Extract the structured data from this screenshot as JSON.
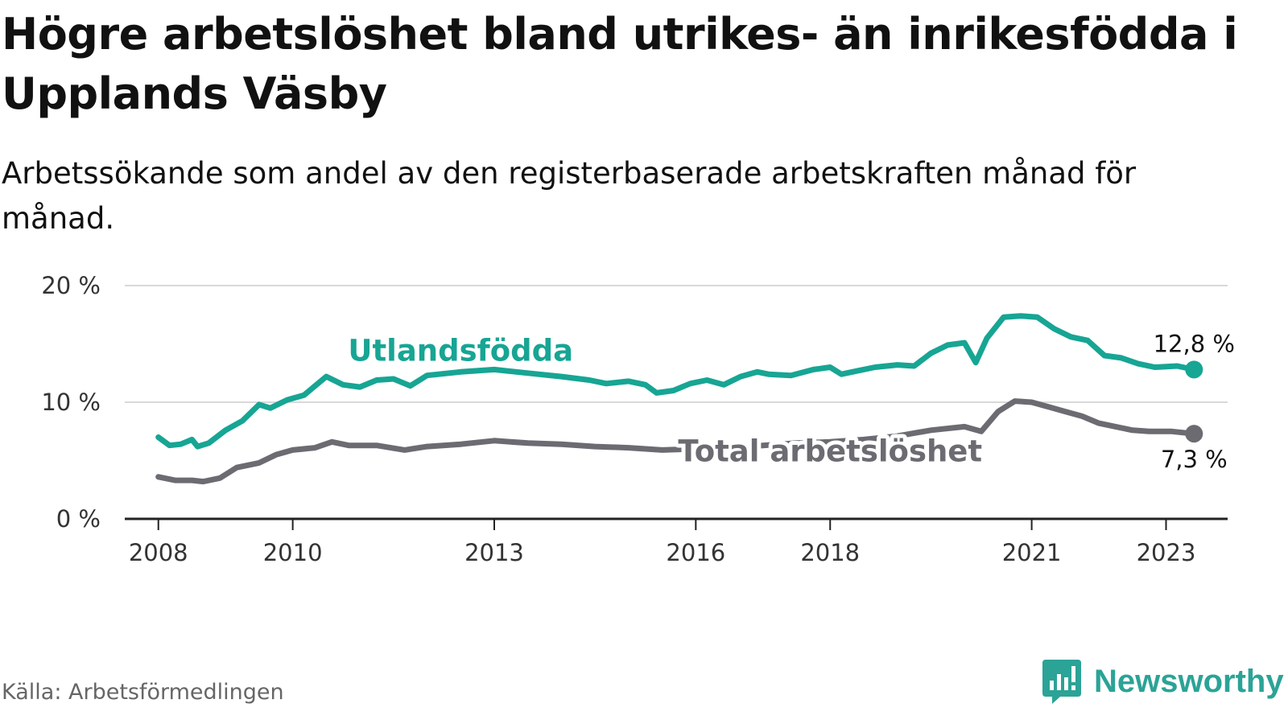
{
  "title": "Högre arbetslöshet bland utrikes- än inrikesfödda i Upplands Väsby",
  "subtitle": "Arbetssökande som andel av den registerbaserade arbetskraften månad för månad.",
  "source": "Källa: Arbetsförmedlingen",
  "brand": {
    "name": "Newsworthy",
    "icon": "newsworthy-logo-icon",
    "color": "#2ba397"
  },
  "colors": {
    "utlandsfodda": "#17a594",
    "total": "#6d6b72",
    "grid": "#d9d9d9",
    "axis": "#222222",
    "text": "#333333"
  },
  "chart_data": {
    "type": "line",
    "title": "Högre arbetslöshet bland utrikes- än inrikesfödda i Upplands Väsby",
    "xlabel": "",
    "ylabel": "",
    "ylim": [
      0,
      20
    ],
    "xlim": [
      "2007-07",
      "2023-12"
    ],
    "grid": true,
    "y_ticks": [
      {
        "value": 0,
        "label": "0 %"
      },
      {
        "value": 10,
        "label": "10 %"
      },
      {
        "value": 20,
        "label": "20 %"
      }
    ],
    "x_ticks": [
      {
        "value": "2008-01",
        "label": "2008"
      },
      {
        "value": "2010-01",
        "label": "2010"
      },
      {
        "value": "2013-01",
        "label": "2013"
      },
      {
        "value": "2016-01",
        "label": "2016"
      },
      {
        "value": "2018-01",
        "label": "2018"
      },
      {
        "value": "2021-01",
        "label": "2021"
      },
      {
        "value": "2023-01",
        "label": "2023"
      }
    ],
    "series": [
      {
        "name": "Utlandsfödda",
        "color": "#17a594",
        "label_at": "2012-07",
        "end_label": "12,8 %",
        "points": [
          [
            "2008-01",
            7.0
          ],
          [
            "2008-03",
            6.3
          ],
          [
            "2008-05",
            6.4
          ],
          [
            "2008-07",
            6.8
          ],
          [
            "2008-08",
            6.2
          ],
          [
            "2008-10",
            6.5
          ],
          [
            "2009-01",
            7.6
          ],
          [
            "2009-04",
            8.4
          ],
          [
            "2009-07",
            9.8
          ],
          [
            "2009-09",
            9.5
          ],
          [
            "2009-12",
            10.2
          ],
          [
            "2010-03",
            10.6
          ],
          [
            "2010-05",
            11.4
          ],
          [
            "2010-07",
            12.2
          ],
          [
            "2010-10",
            11.5
          ],
          [
            "2011-01",
            11.3
          ],
          [
            "2011-04",
            11.9
          ],
          [
            "2011-07",
            12.0
          ],
          [
            "2011-10",
            11.4
          ],
          [
            "2012-01",
            12.3
          ],
          [
            "2012-07",
            12.6
          ],
          [
            "2013-01",
            12.8
          ],
          [
            "2013-07",
            12.5
          ],
          [
            "2014-01",
            12.2
          ],
          [
            "2014-06",
            11.9
          ],
          [
            "2014-09",
            11.6
          ],
          [
            "2015-01",
            11.8
          ],
          [
            "2015-04",
            11.5
          ],
          [
            "2015-06",
            10.8
          ],
          [
            "2015-09",
            11.0
          ],
          [
            "2015-12",
            11.6
          ],
          [
            "2016-03",
            11.9
          ],
          [
            "2016-06",
            11.5
          ],
          [
            "2016-09",
            12.2
          ],
          [
            "2016-12",
            12.6
          ],
          [
            "2017-02",
            12.4
          ],
          [
            "2017-06",
            12.3
          ],
          [
            "2017-10",
            12.8
          ],
          [
            "2018-01",
            13.0
          ],
          [
            "2018-03",
            12.4
          ],
          [
            "2018-06",
            12.7
          ],
          [
            "2018-09",
            13.0
          ],
          [
            "2019-01",
            13.2
          ],
          [
            "2019-04",
            13.1
          ],
          [
            "2019-07",
            14.2
          ],
          [
            "2019-10",
            14.9
          ],
          [
            "2020-01",
            15.1
          ],
          [
            "2020-03",
            13.4
          ],
          [
            "2020-05",
            15.5
          ],
          [
            "2020-08",
            17.3
          ],
          [
            "2020-11",
            17.4
          ],
          [
            "2021-02",
            17.3
          ],
          [
            "2021-05",
            16.3
          ],
          [
            "2021-08",
            15.6
          ],
          [
            "2021-11",
            15.3
          ],
          [
            "2022-02",
            14.0
          ],
          [
            "2022-05",
            13.8
          ],
          [
            "2022-08",
            13.3
          ],
          [
            "2022-11",
            13.0
          ],
          [
            "2023-03",
            13.1
          ],
          [
            "2023-06",
            12.8
          ]
        ]
      },
      {
        "name": "Total arbetslöshet",
        "color": "#6d6b72",
        "label_at": "2018-01",
        "end_label": "7,3 %",
        "points": [
          [
            "2008-01",
            3.6
          ],
          [
            "2008-04",
            3.3
          ],
          [
            "2008-07",
            3.3
          ],
          [
            "2008-09",
            3.2
          ],
          [
            "2008-12",
            3.5
          ],
          [
            "2009-03",
            4.4
          ],
          [
            "2009-07",
            4.8
          ],
          [
            "2009-10",
            5.5
          ],
          [
            "2010-01",
            5.9
          ],
          [
            "2010-05",
            6.1
          ],
          [
            "2010-08",
            6.6
          ],
          [
            "2010-11",
            6.3
          ],
          [
            "2011-04",
            6.3
          ],
          [
            "2011-09",
            5.9
          ],
          [
            "2012-01",
            6.2
          ],
          [
            "2012-07",
            6.4
          ],
          [
            "2013-01",
            6.7
          ],
          [
            "2013-07",
            6.5
          ],
          [
            "2014-01",
            6.4
          ],
          [
            "2014-07",
            6.2
          ],
          [
            "2015-01",
            6.1
          ],
          [
            "2015-07",
            5.9
          ],
          [
            "2016-01",
            6.0
          ],
          [
            "2016-07",
            6.1
          ],
          [
            "2017-01",
            6.3
          ],
          [
            "2017-07",
            6.5
          ],
          [
            "2018-01",
            6.6
          ],
          [
            "2018-07",
            6.8
          ],
          [
            "2019-01",
            7.1
          ],
          [
            "2019-07",
            7.6
          ],
          [
            "2020-01",
            7.9
          ],
          [
            "2020-04",
            7.5
          ],
          [
            "2020-07",
            9.2
          ],
          [
            "2020-10",
            10.1
          ],
          [
            "2021-01",
            10.0
          ],
          [
            "2021-04",
            9.6
          ],
          [
            "2021-07",
            9.2
          ],
          [
            "2021-10",
            8.8
          ],
          [
            "2022-01",
            8.2
          ],
          [
            "2022-04",
            7.9
          ],
          [
            "2022-07",
            7.6
          ],
          [
            "2022-10",
            7.5
          ],
          [
            "2023-02",
            7.5
          ],
          [
            "2023-06",
            7.3
          ]
        ]
      }
    ]
  }
}
